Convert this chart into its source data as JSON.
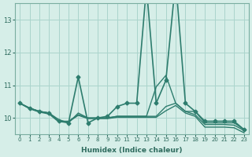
{
  "xlabel": "Humidex (Indice chaleur)",
  "ylabel": "",
  "background_color": "#d6eee8",
  "grid_color": "#aad4cc",
  "line_color": "#2e7d6e",
  "xlim": [
    -0.5,
    23.5
  ],
  "ylim": [
    9.5,
    13.5
  ],
  "yticks": [
    10,
    11,
    12,
    13
  ],
  "xticks": [
    0,
    1,
    2,
    3,
    4,
    5,
    6,
    7,
    8,
    9,
    10,
    11,
    12,
    13,
    14,
    15,
    16,
    17,
    18,
    19,
    20,
    21,
    22,
    23
  ],
  "series": [
    {
      "x": [
        0,
        1,
        2,
        3,
        4,
        5,
        6,
        7,
        8,
        9,
        10,
        11,
        12,
        13,
        14,
        15,
        16,
        17,
        18,
        19,
        20,
        21,
        22,
        23
      ],
      "y": [
        10.45,
        10.3,
        10.2,
        10.15,
        9.9,
        9.85,
        11.25,
        9.85,
        10.0,
        10.05,
        10.35,
        10.45,
        10.45,
        14.0,
        10.45,
        11.15,
        14.2,
        10.45,
        10.2,
        9.9,
        9.9,
        9.9,
        9.9,
        9.65
      ],
      "marker": "D",
      "markersize": 2.5,
      "linewidth": 1.2
    },
    {
      "x": [
        0,
        1,
        2,
        3,
        4,
        5,
        6,
        7,
        8,
        9,
        10,
        11,
        12,
        13,
        14,
        15,
        16,
        17,
        18,
        19,
        20,
        21,
        22,
        23
      ],
      "y": [
        10.45,
        10.3,
        10.2,
        10.15,
        9.95,
        9.85,
        10.15,
        10.0,
        10.0,
        10.0,
        10.05,
        10.05,
        10.05,
        10.05,
        10.95,
        11.3,
        10.45,
        10.2,
        10.2,
        9.85,
        9.85,
        9.85,
        9.85,
        9.65
      ],
      "marker": null,
      "markersize": 0,
      "linewidth": 1.0
    },
    {
      "x": [
        0,
        1,
        2,
        3,
        4,
        5,
        6,
        7,
        8,
        9,
        10,
        11,
        12,
        13,
        14,
        15,
        16,
        17,
        18,
        19,
        20,
        21,
        22,
        23
      ],
      "y": [
        10.45,
        10.3,
        10.2,
        10.15,
        9.9,
        9.9,
        10.1,
        10.0,
        10.0,
        10.0,
        10.05,
        10.05,
        10.05,
        10.05,
        10.05,
        10.35,
        10.45,
        10.2,
        10.1,
        9.8,
        9.8,
        9.8,
        9.78,
        9.62
      ],
      "marker": null,
      "markersize": 0,
      "linewidth": 1.0
    },
    {
      "x": [
        0,
        1,
        2,
        3,
        4,
        5,
        6,
        7,
        8,
        9,
        10,
        11,
        12,
        13,
        14,
        15,
        16,
        17,
        18,
        19,
        20,
        21,
        22,
        23
      ],
      "y": [
        10.45,
        10.28,
        10.18,
        10.12,
        9.88,
        9.88,
        10.08,
        9.98,
        9.98,
        9.98,
        10.02,
        10.02,
        10.02,
        10.02,
        10.02,
        10.22,
        10.38,
        10.15,
        10.05,
        9.72,
        9.72,
        9.72,
        9.7,
        9.55
      ],
      "marker": null,
      "markersize": 0,
      "linewidth": 1.0
    }
  ]
}
